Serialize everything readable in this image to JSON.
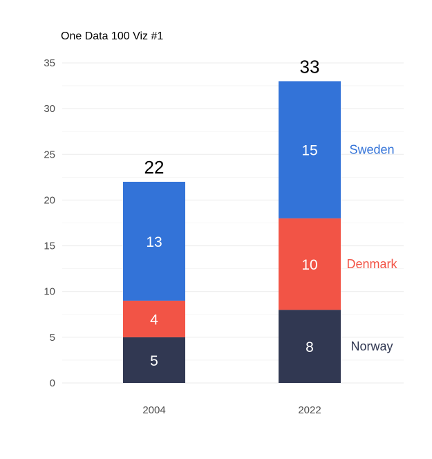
{
  "chart_data": {
    "type": "bar",
    "stacked": true,
    "title": "One Data 100 Viz #1",
    "xlabel": "",
    "ylabel": "",
    "categories": [
      "2004",
      "2022"
    ],
    "series": [
      {
        "name": "Norway",
        "values": [
          5,
          8
        ],
        "color": "#313852"
      },
      {
        "name": "Denmark",
        "values": [
          4,
          10
        ],
        "color": "#f25446"
      },
      {
        "name": "Sweden",
        "values": [
          13,
          15
        ],
        "color": "#3373d8"
      }
    ],
    "totals": [
      22,
      33
    ],
    "ylim": [
      0,
      35
    ],
    "yticks": [
      0,
      5,
      10,
      15,
      20,
      25,
      30,
      35
    ],
    "grid": true,
    "legend": "direct labels right of last bar"
  }
}
